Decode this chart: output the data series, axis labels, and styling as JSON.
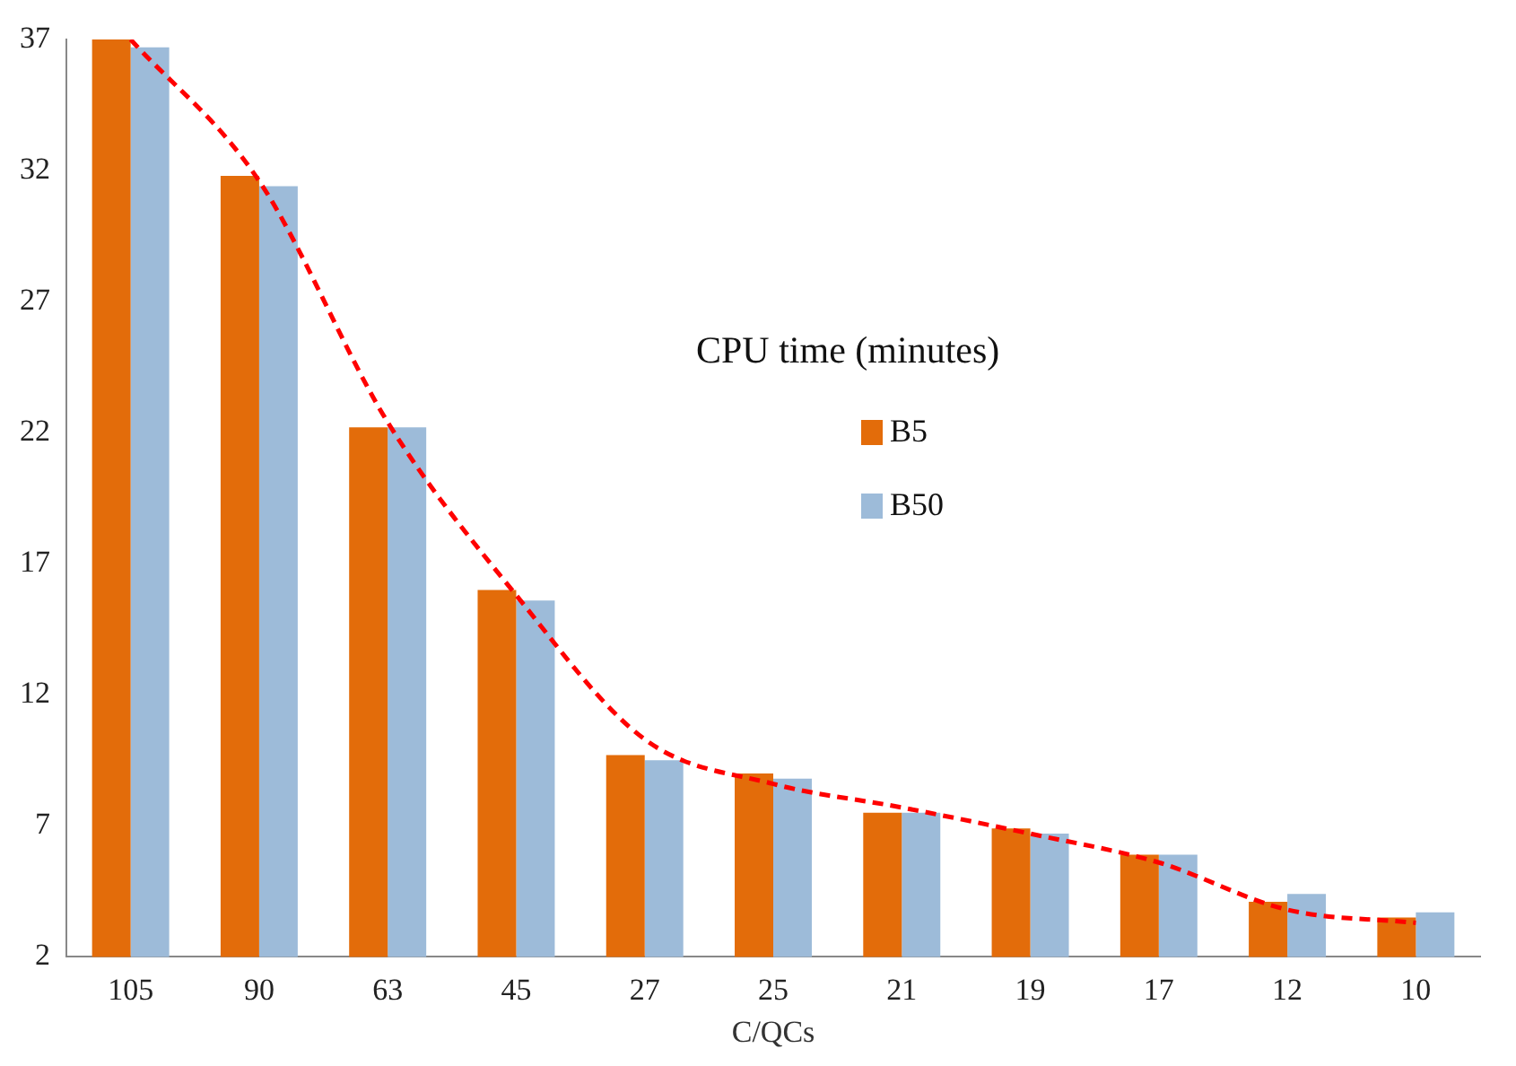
{
  "chart_data": {
    "type": "bar",
    "xlabel": "C/QCs",
    "legend_title": "CPU time (minutes)",
    "legend": "top",
    "grid": false,
    "categories": [
      "105",
      "90",
      "63",
      "45",
      "27",
      "25",
      "21",
      "19",
      "17",
      "12",
      "10"
    ],
    "ylim": [
      2,
      37
    ],
    "yticks": [
      2,
      7,
      12,
      17,
      22,
      27,
      32,
      37
    ],
    "series": [
      {
        "name": "B5",
        "color": "#e36c0a",
        "values": [
          37,
          31.8,
          22.2,
          16.0,
          9.7,
          9.0,
          7.5,
          6.9,
          5.9,
          4.1,
          3.5
        ]
      },
      {
        "name": "B50",
        "color": "#9dbbd9",
        "values": [
          36.7,
          31.4,
          22.2,
          15.6,
          9.5,
          8.8,
          7.5,
          6.7,
          5.9,
          4.4,
          3.7
        ]
      },
      {
        "type": "line",
        "color": "#ff0000",
        "line_style": "dashed",
        "marker": "none",
        "values": [
          37,
          31.6,
          22.4,
          15.8,
          10.3,
          8.6,
          7.7,
          6.7,
          5.6,
          3.8,
          3.3
        ]
      }
    ]
  }
}
